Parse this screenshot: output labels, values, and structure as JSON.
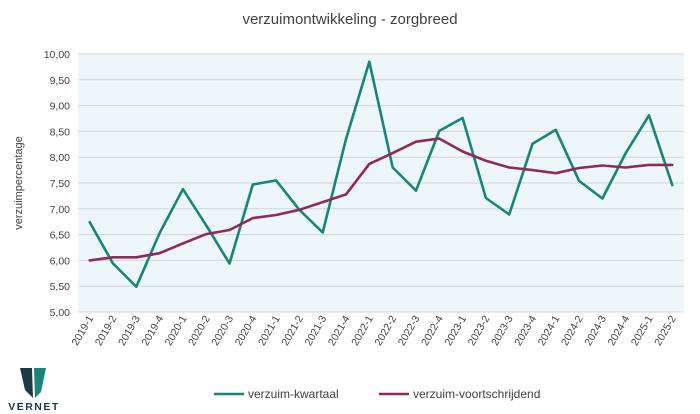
{
  "chart_data": {
    "type": "line",
    "title": "verzuimontwikkeling - zorgbreed",
    "ylabel": "verzuimpercentage",
    "xlabel": "",
    "ylim": [
      5.0,
      10.0
    ],
    "ytick_step": 0.5,
    "grid": true,
    "legend_position": "bottom",
    "categories": [
      "2019-1",
      "2019-2",
      "2019-3",
      "2019-4",
      "2020-1",
      "2020-2",
      "2020-3",
      "2020-4",
      "2021-1",
      "2021-2",
      "2021-3",
      "2021-4",
      "2022-1",
      "2022-2",
      "2022-3",
      "2022-4",
      "2023-1",
      "2023-2",
      "2023-3",
      "2023-4",
      "2024-1",
      "2024-2",
      "2024-3",
      "2024-4",
      "2025-1",
      "2025-2"
    ],
    "series": [
      {
        "name": "verzuim-kwartaal",
        "color": "#1a8479",
        "values": [
          6.74,
          5.94,
          5.49,
          6.53,
          7.38,
          6.68,
          5.94,
          7.47,
          7.55,
          6.98,
          6.54,
          8.35,
          9.85,
          7.8,
          7.35,
          8.51,
          8.76,
          7.21,
          6.89,
          8.26,
          8.53,
          7.54,
          7.2,
          8.08,
          8.81,
          7.46
        ]
      },
      {
        "name": "verzuim-voortschrijdend",
        "color": "#8e2a5d",
        "values": [
          6.0,
          6.06,
          6.06,
          6.14,
          6.33,
          6.51,
          6.59,
          6.82,
          6.88,
          6.98,
          7.13,
          7.28,
          7.87,
          8.08,
          8.3,
          8.36,
          8.11,
          7.93,
          7.8,
          7.75,
          7.69,
          7.79,
          7.84,
          7.8,
          7.85,
          7.85
        ]
      }
    ]
  },
  "brand": {
    "name": "VERNET",
    "colors": {
      "dark": "#1a3a44",
      "teal": "#1a8479"
    }
  }
}
